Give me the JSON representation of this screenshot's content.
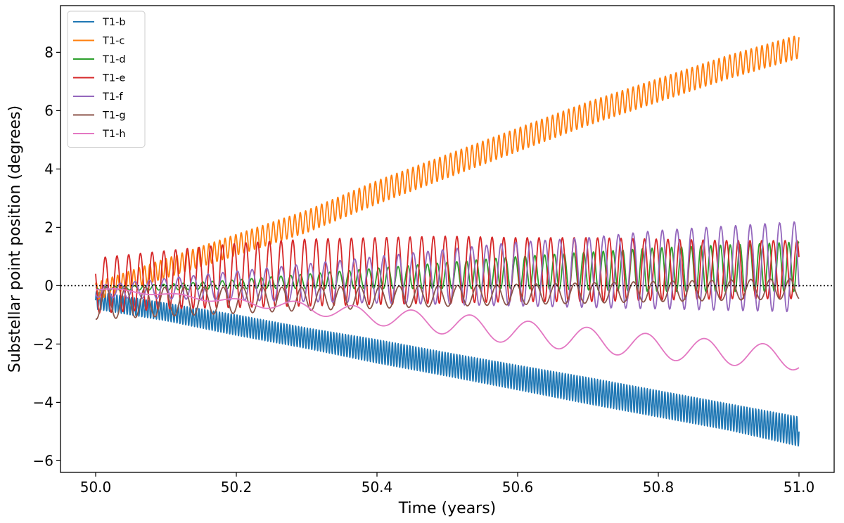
{
  "chart_data": {
    "type": "line",
    "xlabel": "Time (years)",
    "ylabel": "Substellar point position (degrees)",
    "xlim": [
      49.95,
      51.05
    ],
    "ylim": [
      -6.4,
      9.6
    ],
    "xticks": [
      50.0,
      50.2,
      50.4,
      50.6,
      50.8,
      51.0
    ],
    "xtick_labels": [
      "50.0",
      "50.2",
      "50.4",
      "50.6",
      "50.8",
      "51.0"
    ],
    "yticks": [
      -6,
      -4,
      -2,
      0,
      2,
      4,
      6,
      8
    ],
    "ytick_labels": [
      "−6",
      "−4",
      "−2",
      "0",
      "2",
      "4",
      "6",
      "8"
    ],
    "reference_line": {
      "y": 0,
      "style": "dotted",
      "color": "#000000"
    },
    "legend_location": "upper left",
    "grid": false,
    "series": [
      {
        "name": "T1-b",
        "color": "#1f77b4",
        "x": [
          50.0,
          50.1,
          50.2,
          50.3,
          50.4,
          50.5,
          50.6,
          50.7,
          50.8,
          50.9,
          51.0
        ],
        "center": [
          -0.5,
          -0.9,
          -1.35,
          -1.8,
          -2.25,
          -2.7,
          -3.15,
          -3.6,
          -4.05,
          -4.5,
          -5.0
        ],
        "amplitude": [
          0.3,
          0.3,
          0.35,
          0.35,
          0.4,
          0.4,
          0.42,
          0.45,
          0.45,
          0.45,
          0.5
        ],
        "oscillations_per_year": 240
      },
      {
        "name": "T1-c",
        "color": "#ff7f0e",
        "x": [
          50.0,
          50.1,
          50.2,
          50.3,
          50.4,
          50.5,
          50.6,
          50.7,
          50.8,
          50.9,
          51.0
        ],
        "center": [
          -0.2,
          0.6,
          1.4,
          2.2,
          3.2,
          4.1,
          5.0,
          5.9,
          6.7,
          7.5,
          8.2
        ],
        "amplitude": [
          0.3,
          0.33,
          0.36,
          0.38,
          0.4,
          0.4,
          0.4,
          0.4,
          0.4,
          0.4,
          0.4
        ],
        "oscillations_per_year": 131
      },
      {
        "name": "T1-d",
        "color": "#2ca02c",
        "x": [
          50.0,
          50.1,
          50.2,
          50.3,
          50.4,
          50.5,
          50.6,
          50.7,
          50.8,
          50.9,
          51.0
        ],
        "center": [
          -0.1,
          -0.05,
          0.05,
          0.15,
          0.25,
          0.35,
          0.45,
          0.5,
          0.55,
          0.6,
          0.65
        ],
        "amplitude": [
          0.05,
          0.1,
          0.15,
          0.25,
          0.35,
          0.45,
          0.55,
          0.65,
          0.75,
          0.8,
          0.85
        ],
        "oscillations_per_year": 72
      },
      {
        "name": "T1-e",
        "color": "#d62728",
        "x": [
          50.0,
          50.1,
          50.2,
          50.3,
          50.4,
          50.5,
          50.6,
          50.7,
          50.8,
          50.9,
          51.0
        ],
        "center": [
          0.0,
          0.2,
          0.35,
          0.45,
          0.5,
          0.55,
          0.55,
          0.55,
          0.55,
          0.55,
          0.55
        ],
        "amplitude": [
          0.95,
          1.0,
          1.1,
          1.15,
          1.15,
          1.15,
          1.1,
          1.1,
          1.05,
          1.0,
          1.0
        ],
        "oscillations_per_year": 60
      },
      {
        "name": "T1-f",
        "color": "#9467bd",
        "x": [
          50.0,
          50.1,
          50.2,
          50.3,
          50.4,
          50.5,
          50.6,
          50.7,
          50.8,
          50.9,
          51.0
        ],
        "center": [
          -0.2,
          -0.1,
          0.0,
          0.1,
          0.2,
          0.3,
          0.4,
          0.45,
          0.55,
          0.6,
          0.65
        ],
        "amplitude": [
          0.2,
          0.35,
          0.5,
          0.65,
          0.8,
          0.95,
          1.1,
          1.2,
          1.35,
          1.45,
          1.55
        ],
        "oscillations_per_year": 48
      },
      {
        "name": "T1-g",
        "color": "#8c564b",
        "x": [
          50.0,
          50.1,
          50.2,
          50.3,
          50.4,
          50.5,
          50.6,
          50.7,
          50.8,
          50.9,
          51.0
        ],
        "center": [
          -0.6,
          -0.55,
          -0.5,
          -0.45,
          -0.4,
          -0.35,
          -0.3,
          -0.25,
          -0.2,
          -0.15,
          -0.1
        ],
        "amplitude": [
          0.55,
          0.5,
          0.45,
          0.4,
          0.38,
          0.36,
          0.35,
          0.35,
          0.35,
          0.35,
          0.35
        ],
        "oscillations_per_year": 36
      },
      {
        "name": "T1-h",
        "color": "#e377c2",
        "x": [
          50.0,
          50.1,
          50.2,
          50.3,
          50.4,
          50.5,
          50.6,
          50.7,
          50.8,
          50.9,
          51.0
        ],
        "center": [
          -0.1,
          -0.3,
          -0.55,
          -0.75,
          -1.05,
          -1.3,
          -1.6,
          -1.85,
          -2.1,
          -2.3,
          -2.5
        ],
        "amplitude": [
          0.05,
          0.05,
          0.1,
          0.2,
          0.3,
          0.38,
          0.42,
          0.42,
          0.42,
          0.42,
          0.4
        ],
        "oscillations_per_year": 12
      }
    ]
  }
}
